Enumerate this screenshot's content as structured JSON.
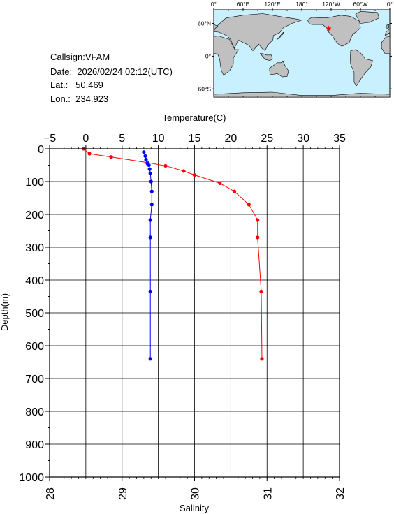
{
  "info": {
    "callsign_label": "Callsign:",
    "callsign": "VFAM",
    "date_label": "Date:",
    "date": "2026/02/24 02:12(UTC)",
    "lat_label": "Lat.:",
    "lat": "50.469",
    "lon_label": "Lon.:",
    "lon": "234.923"
  },
  "map": {
    "top_ticks": [
      "0°",
      "60°E",
      "120°E",
      "180°",
      "120°W",
      "60°W",
      "0°"
    ],
    "lat_ticks": [
      "60°N",
      "0°",
      "60°S"
    ],
    "marker_lon": 234.923,
    "marker_lat": 50.469,
    "ocean_color": "#c8f0ff",
    "land_color": "#c0c0c0",
    "marker_color": "#ff0000"
  },
  "chart_data": {
    "type": "line",
    "ylabel": "Depth(m)",
    "ylim": [
      0,
      1000
    ],
    "y_ticks": [
      "0",
      "100",
      "200",
      "300",
      "400",
      "500",
      "600",
      "700",
      "800",
      "900",
      "1000"
    ],
    "temperature_axis": {
      "label": "Temperature(C)",
      "range": [
        -5,
        35
      ],
      "ticks": [
        "-5",
        "0",
        "5",
        "10",
        "15",
        "20",
        "25",
        "30",
        "35"
      ]
    },
    "salinity_axis": {
      "label": "Salinity",
      "range": [
        28,
        32
      ],
      "ticks": [
        "28",
        "29",
        "30",
        "31",
        "32"
      ]
    },
    "series": [
      {
        "variable": "temperature",
        "color": "#ff0000",
        "points": [
          [
            -0.3,
            0
          ],
          [
            0.5,
            15
          ],
          [
            3.5,
            25
          ],
          [
            8.5,
            42
          ],
          [
            11,
            52
          ],
          [
            13.5,
            68
          ],
          [
            15,
            80
          ],
          [
            18.5,
            105
          ],
          [
            20.5,
            130
          ],
          [
            22.5,
            170
          ],
          [
            23.7,
            217
          ],
          [
            23.7,
            270
          ],
          [
            24.2,
            435
          ],
          [
            24.3,
            640
          ]
        ]
      },
      {
        "variable": "salinity",
        "color": "#0000ff",
        "points": [
          [
            29.3,
            10
          ],
          [
            29.32,
            22
          ],
          [
            29.33,
            33
          ],
          [
            29.35,
            45
          ],
          [
            29.37,
            50
          ],
          [
            29.38,
            62
          ],
          [
            29.39,
            75
          ],
          [
            29.4,
            100
          ],
          [
            29.41,
            130
          ],
          [
            29.41,
            170
          ],
          [
            29.39,
            217
          ],
          [
            29.39,
            270
          ],
          [
            29.39,
            435
          ],
          [
            29.39,
            640
          ]
        ]
      }
    ]
  }
}
